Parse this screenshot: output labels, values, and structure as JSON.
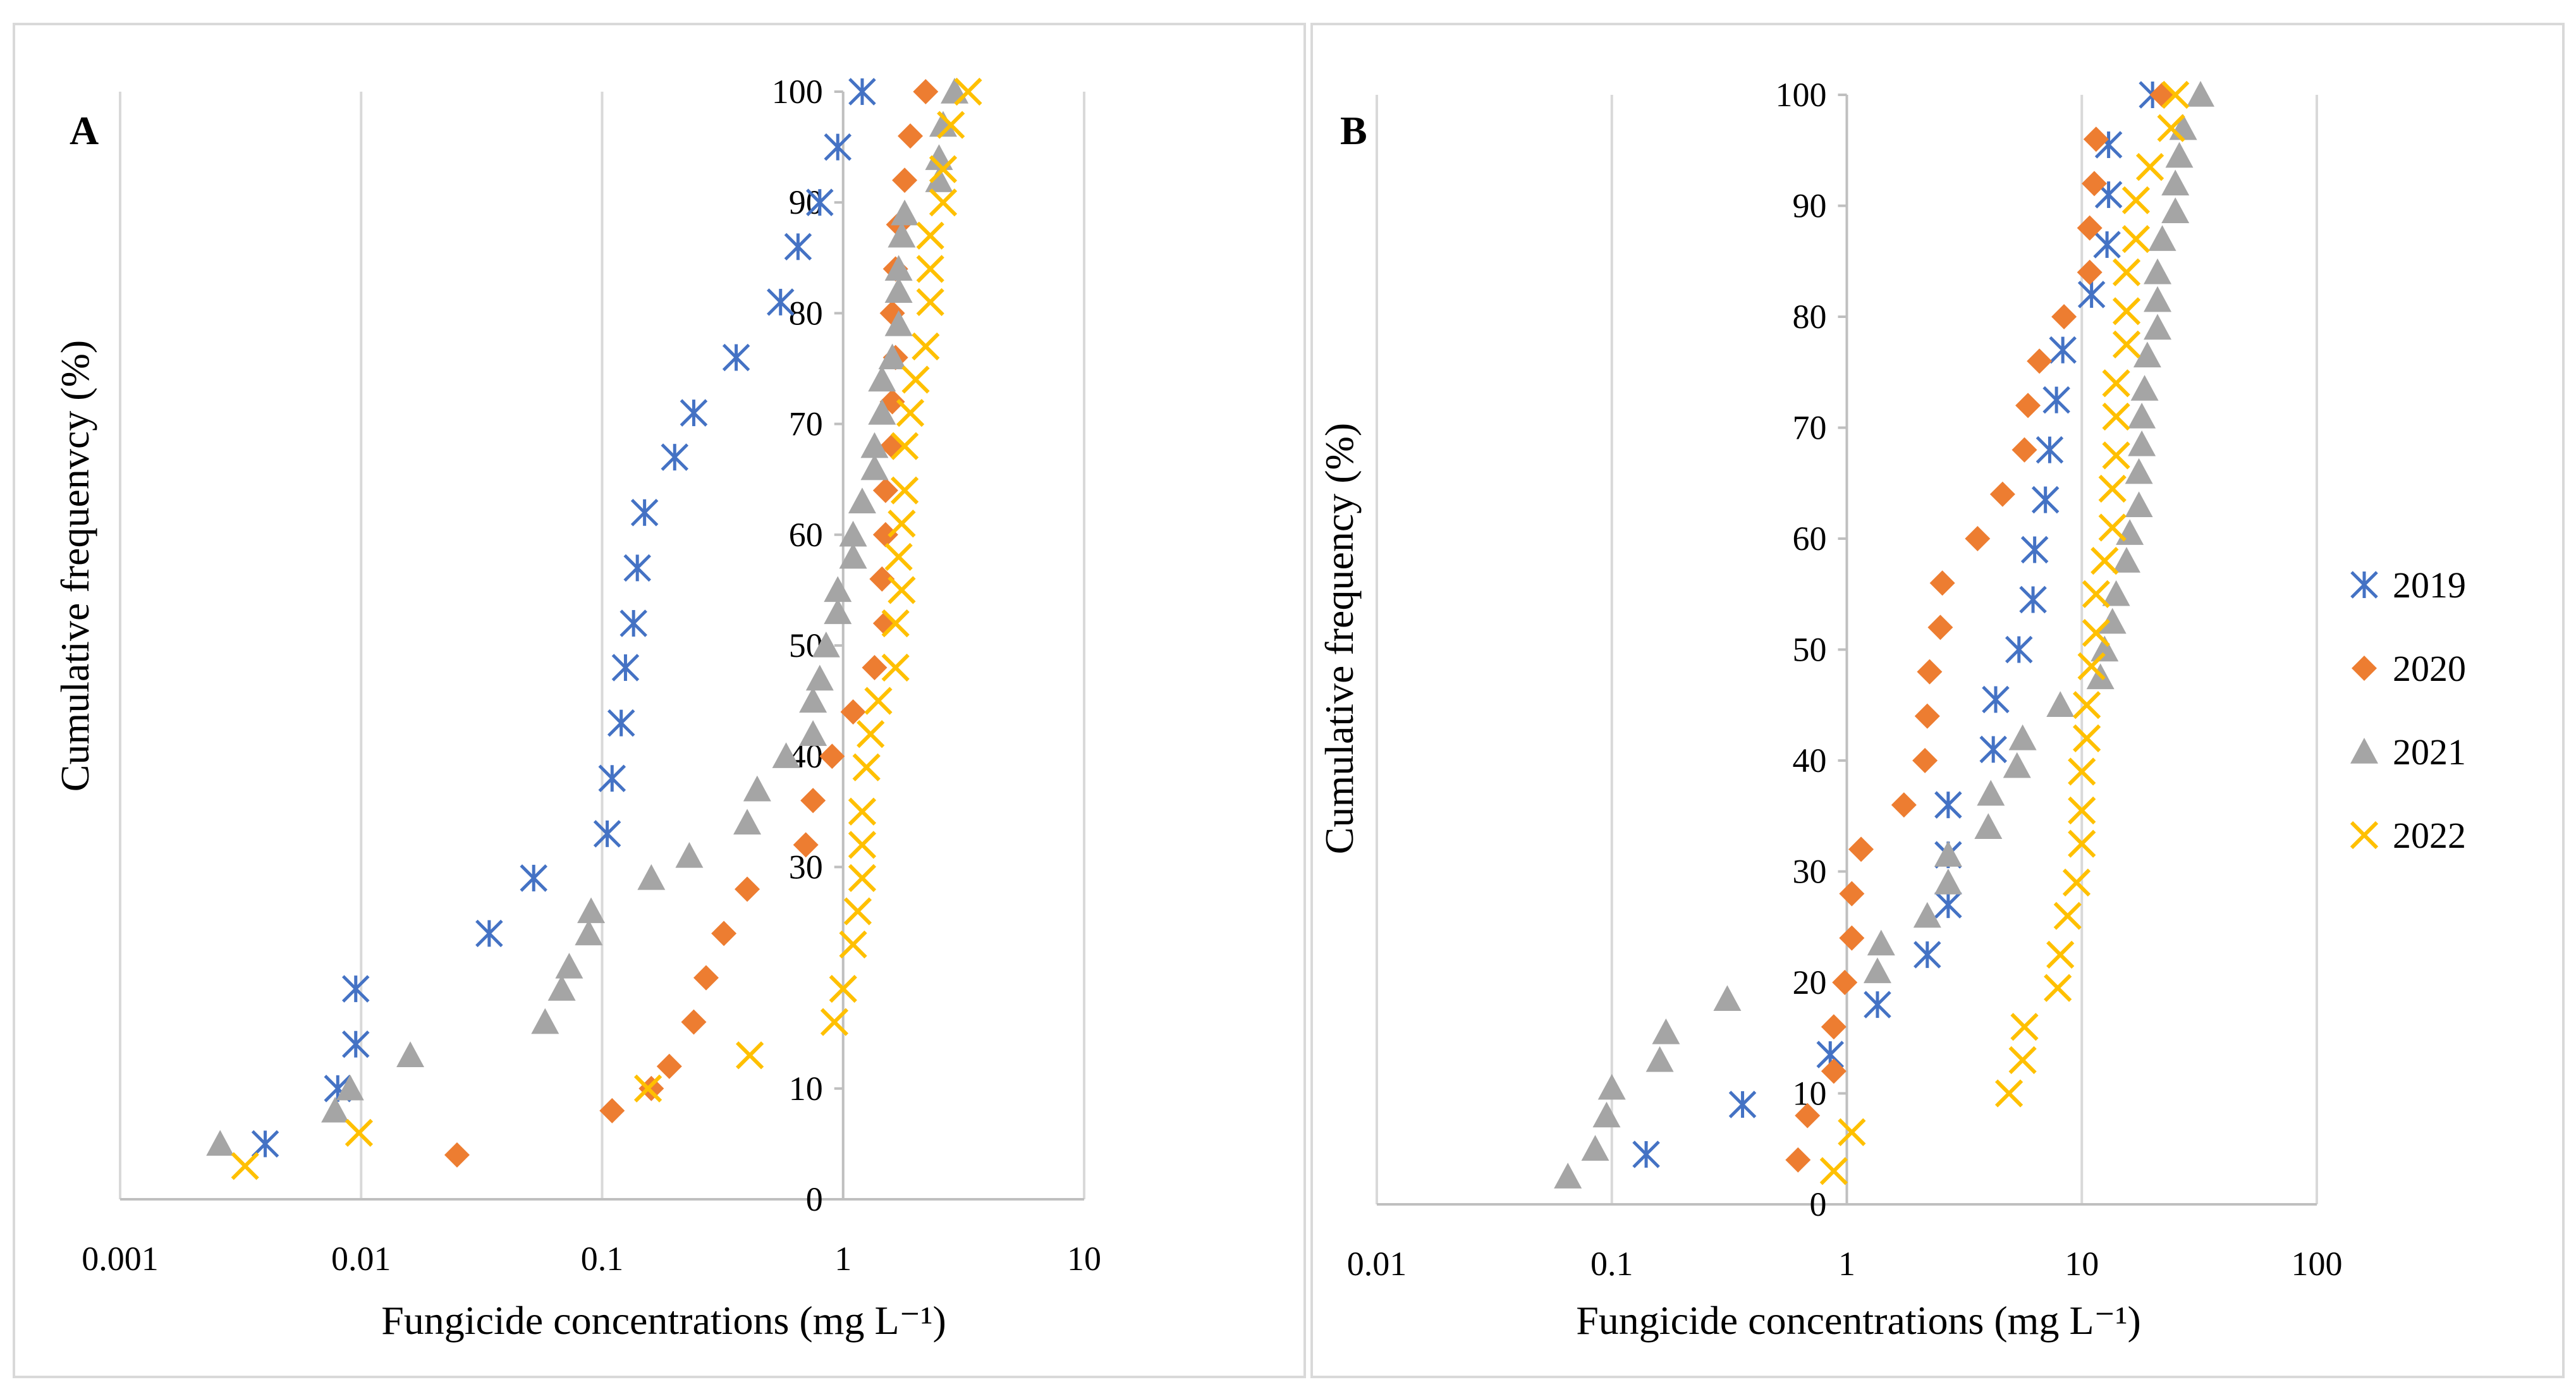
{
  "colors": {
    "2019": "#4472C4",
    "2020": "#ED7D31",
    "2021": "#A5A5A5",
    "2022": "#FFC000",
    "grid": "#D9D9D9",
    "axis": "#BFBFBF",
    "frame": "#D9D9D9"
  },
  "markers": {
    "2019": "asterisk",
    "2020": "diamond",
    "2021": "triangle",
    "2022": "x-cross"
  },
  "legend": {
    "placement": "right",
    "entries": [
      "2019",
      "2020",
      "2021",
      "2022"
    ]
  },
  "chart_data": [
    {
      "type": "scatter",
      "panel_label": "A",
      "title": "",
      "xlabel": "Fungicide concentrations (mg L⁻¹)",
      "ylabel": "Cumulative frequenvcy (%)",
      "xscale": "log",
      "xlim": [
        0.001,
        10
      ],
      "ylim": [
        0,
        100
      ],
      "y_axis_crosses_x_at": 1,
      "grid": "vertical",
      "xticks": [
        {
          "value": 0.001,
          "label": "0.001"
        },
        {
          "value": 0.01,
          "label": "0.01"
        },
        {
          "value": 0.1,
          "label": "0.1"
        },
        {
          "value": 1,
          "label": "1"
        },
        {
          "value": 10,
          "label": "10"
        }
      ],
      "yticks": [
        {
          "value": 0,
          "label": "0"
        },
        {
          "value": 10,
          "label": "10"
        },
        {
          "value": 30,
          "label": "30"
        },
        {
          "value": 40,
          "label": "40"
        },
        {
          "value": 50,
          "label": "50"
        },
        {
          "value": 60,
          "label": "60"
        },
        {
          "value": 70,
          "label": "70"
        },
        {
          "value": 80,
          "label": "80"
        },
        {
          "value": 90,
          "label": "90"
        },
        {
          "value": 100,
          "label": "100"
        }
      ],
      "series": [
        {
          "name": "2019",
          "points": [
            [
              0.004,
              5
            ],
            [
              0.008,
              10
            ],
            [
              0.0095,
              14
            ],
            [
              0.0095,
              19
            ],
            [
              0.034,
              24
            ],
            [
              0.052,
              29
            ],
            [
              0.105,
              33
            ],
            [
              0.11,
              38
            ],
            [
              0.12,
              43
            ],
            [
              0.125,
              48
            ],
            [
              0.135,
              52
            ],
            [
              0.14,
              57
            ],
            [
              0.15,
              62
            ],
            [
              0.2,
              67
            ],
            [
              0.24,
              71
            ],
            [
              0.36,
              76
            ],
            [
              0.55,
              81
            ],
            [
              0.65,
              86
            ],
            [
              0.8,
              90
            ],
            [
              0.95,
              95
            ],
            [
              1.2,
              100
            ]
          ]
        },
        {
          "name": "2020",
          "points": [
            [
              0.025,
              4
            ],
            [
              0.11,
              8
            ],
            [
              0.16,
              10
            ],
            [
              0.19,
              12
            ],
            [
              0.24,
              16
            ],
            [
              0.27,
              20
            ],
            [
              0.32,
              24
            ],
            [
              0.4,
              28
            ],
            [
              0.7,
              32
            ],
            [
              0.75,
              36
            ],
            [
              0.9,
              40
            ],
            [
              1.1,
              44
            ],
            [
              1.35,
              48
            ],
            [
              1.5,
              52
            ],
            [
              1.45,
              56
            ],
            [
              1.5,
              60
            ],
            [
              1.5,
              64
            ],
            [
              1.6,
              68
            ],
            [
              1.6,
              72
            ],
            [
              1.65,
              76
            ],
            [
              1.6,
              80
            ],
            [
              1.65,
              84
            ],
            [
              1.7,
              88
            ],
            [
              1.8,
              92
            ],
            [
              1.9,
              96
            ],
            [
              2.2,
              100
            ]
          ]
        },
        {
          "name": "2021",
          "points": [
            [
              0.0026,
              5
            ],
            [
              0.0078,
              8
            ],
            [
              0.009,
              10
            ],
            [
              0.016,
              13
            ],
            [
              0.058,
              16
            ],
            [
              0.068,
              19
            ],
            [
              0.073,
              21
            ],
            [
              0.088,
              24
            ],
            [
              0.09,
              26
            ],
            [
              0.16,
              29
            ],
            [
              0.23,
              31
            ],
            [
              0.4,
              34
            ],
            [
              0.44,
              37
            ],
            [
              0.58,
              40
            ],
            [
              0.75,
              42
            ],
            [
              0.75,
              45
            ],
            [
              0.8,
              47
            ],
            [
              0.85,
              50
            ],
            [
              0.95,
              53
            ],
            [
              0.95,
              55
            ],
            [
              1.1,
              58
            ],
            [
              1.1,
              60
            ],
            [
              1.2,
              63
            ],
            [
              1.35,
              66
            ],
            [
              1.35,
              68
            ],
            [
              1.45,
              71
            ],
            [
              1.45,
              74
            ],
            [
              1.6,
              76
            ],
            [
              1.7,
              79
            ],
            [
              1.7,
              82
            ],
            [
              1.7,
              84
            ],
            [
              1.75,
              87
            ],
            [
              1.8,
              89
            ],
            [
              2.5,
              92
            ],
            [
              2.5,
              94
            ],
            [
              2.6,
              97
            ],
            [
              2.9,
              100
            ]
          ]
        },
        {
          "name": "2022",
          "points": [
            [
              0.0033,
              3
            ],
            [
              0.0098,
              6
            ],
            [
              0.155,
              10
            ],
            [
              0.41,
              13
            ],
            [
              0.92,
              16
            ],
            [
              1.0,
              19
            ],
            [
              1.1,
              23
            ],
            [
              1.15,
              26
            ],
            [
              1.2,
              29
            ],
            [
              1.2,
              32
            ],
            [
              1.2,
              35
            ],
            [
              1.25,
              39
            ],
            [
              1.3,
              42
            ],
            [
              1.4,
              45
            ],
            [
              1.65,
              48
            ],
            [
              1.65,
              52
            ],
            [
              1.75,
              55
            ],
            [
              1.7,
              58
            ],
            [
              1.75,
              61
            ],
            [
              1.8,
              64
            ],
            [
              1.8,
              68
            ],
            [
              1.9,
              71
            ],
            [
              2.0,
              74
            ],
            [
              2.2,
              77
            ],
            [
              2.3,
              81
            ],
            [
              2.3,
              84
            ],
            [
              2.3,
              87
            ],
            [
              2.6,
              90
            ],
            [
              2.6,
              93
            ],
            [
              2.8,
              97
            ],
            [
              3.3,
              100
            ]
          ]
        }
      ]
    },
    {
      "type": "scatter",
      "panel_label": "B",
      "title": "",
      "xlabel": "Fungicide concentrations (mg L⁻¹)",
      "ylabel": "Cumulative frequency (%)",
      "xscale": "log",
      "xlim": [
        0.01,
        100
      ],
      "ylim": [
        0,
        100
      ],
      "y_axis_crosses_x_at": 1,
      "grid": "vertical",
      "xticks": [
        {
          "value": 0.01,
          "label": "0.01"
        },
        {
          "value": 0.1,
          "label": "0.1"
        },
        {
          "value": 1,
          "label": "1"
        },
        {
          "value": 10,
          "label": "10"
        },
        {
          "value": 100,
          "label": "100"
        }
      ],
      "yticks": [
        {
          "value": 0,
          "label": "0"
        },
        {
          "value": 10,
          "label": "10"
        },
        {
          "value": 20,
          "label": "20"
        },
        {
          "value": 30,
          "label": "30"
        },
        {
          "value": 40,
          "label": "40"
        },
        {
          "value": 50,
          "label": "50"
        },
        {
          "value": 60,
          "label": "60"
        },
        {
          "value": 70,
          "label": "70"
        },
        {
          "value": 80,
          "label": "80"
        },
        {
          "value": 90,
          "label": "90"
        },
        {
          "value": 100,
          "label": "100"
        }
      ],
      "series": [
        {
          "name": "2019",
          "points": [
            [
              0.14,
              4.5
            ],
            [
              0.36,
              9
            ],
            [
              0.85,
              13.5
            ],
            [
              1.35,
              18
            ],
            [
              2.2,
              22.5
            ],
            [
              2.7,
              27
            ],
            [
              2.7,
              31.5
            ],
            [
              2.7,
              36
            ],
            [
              4.2,
              41
            ],
            [
              4.3,
              45.5
            ],
            [
              5.4,
              50
            ],
            [
              6.2,
              54.5
            ],
            [
              6.3,
              59
            ],
            [
              7.0,
              63.5
            ],
            [
              7.3,
              68
            ],
            [
              7.8,
              72.5
            ],
            [
              8.3,
              77
            ],
            [
              11.0,
              82
            ],
            [
              12.8,
              86.5
            ],
            [
              13.0,
              91
            ],
            [
              13.0,
              95.5
            ],
            [
              20.0,
              100
            ]
          ]
        },
        {
          "name": "2020",
          "points": [
            [
              0.62,
              4
            ],
            [
              0.68,
              8
            ],
            [
              0.88,
              12
            ],
            [
              0.88,
              16
            ],
            [
              0.98,
              20
            ],
            [
              1.05,
              24
            ],
            [
              1.05,
              28
            ],
            [
              1.15,
              32
            ],
            [
              1.75,
              36
            ],
            [
              2.15,
              40
            ],
            [
              2.2,
              44
            ],
            [
              2.25,
              48
            ],
            [
              2.5,
              52
            ],
            [
              2.55,
              56
            ],
            [
              3.6,
              60
            ],
            [
              4.6,
              64
            ],
            [
              5.7,
              68
            ],
            [
              5.9,
              72
            ],
            [
              6.6,
              76
            ],
            [
              8.4,
              80
            ],
            [
              10.8,
              84
            ],
            [
              10.8,
              88
            ],
            [
              11.3,
              92
            ],
            [
              11.5,
              96
            ],
            [
              22.0,
              100
            ]
          ]
        },
        {
          "name": "2021",
          "points": [
            [
              0.065,
              2.5
            ],
            [
              0.085,
              5
            ],
            [
              0.095,
              8
            ],
            [
              0.1,
              10.5
            ],
            [
              0.16,
              13
            ],
            [
              0.17,
              15.5
            ],
            [
              0.31,
              18.5
            ],
            [
              1.35,
              21
            ],
            [
              1.4,
              23.5
            ],
            [
              2.2,
              26
            ],
            [
              2.7,
              29
            ],
            [
              2.7,
              31.5
            ],
            [
              4.0,
              34
            ],
            [
              4.1,
              37
            ],
            [
              5.3,
              39.5
            ],
            [
              5.6,
              42
            ],
            [
              8.1,
              45
            ],
            [
              12.0,
              47.5
            ],
            [
              12.5,
              50
            ],
            [
              13.5,
              52.5
            ],
            [
              14.0,
              55
            ],
            [
              15.5,
              58
            ],
            [
              16.0,
              60.5
            ],
            [
              17.5,
              63
            ],
            [
              17.5,
              66
            ],
            [
              18.0,
              68.5
            ],
            [
              18.0,
              71
            ],
            [
              18.5,
              73.5
            ],
            [
              19.0,
              76.5
            ],
            [
              21.0,
              79
            ],
            [
              21.0,
              81.5
            ],
            [
              21.0,
              84
            ],
            [
              22.0,
              87
            ],
            [
              25.0,
              89.5
            ],
            [
              25.0,
              92
            ],
            [
              26.0,
              94.5
            ],
            [
              27.0,
              97
            ],
            [
              32.0,
              100
            ]
          ]
        },
        {
          "name": "2022",
          "points": [
            [
              0.88,
              3
            ],
            [
              1.05,
              6.5
            ],
            [
              4.9,
              10
            ],
            [
              5.6,
              13
            ],
            [
              5.7,
              16
            ],
            [
              7.9,
              19.5
            ],
            [
              8.1,
              22.5
            ],
            [
              8.7,
              26
            ],
            [
              9.5,
              29
            ],
            [
              10.0,
              32.5
            ],
            [
              10.0,
              35.5
            ],
            [
              10.0,
              39
            ],
            [
              10.5,
              42
            ],
            [
              10.5,
              45
            ],
            [
              11.0,
              48.5
            ],
            [
              11.5,
              51.5
            ],
            [
              11.5,
              55
            ],
            [
              12.5,
              58
            ],
            [
              13.5,
              61
            ],
            [
              13.5,
              64.5
            ],
            [
              14.0,
              67.5
            ],
            [
              14.0,
              71
            ],
            [
              14.0,
              74
            ],
            [
              15.5,
              77.5
            ],
            [
              15.5,
              80.5
            ],
            [
              15.5,
              84
            ],
            [
              17.0,
              87
            ],
            [
              17.0,
              90.5
            ],
            [
              19.5,
              93.5
            ],
            [
              24.0,
              97
            ],
            [
              25.0,
              100
            ]
          ]
        }
      ]
    }
  ]
}
